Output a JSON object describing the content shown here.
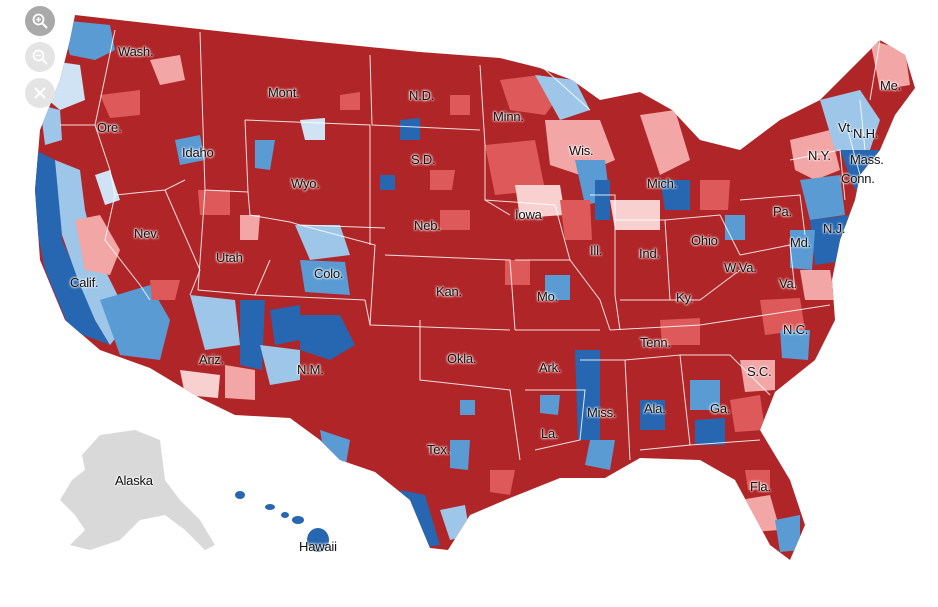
{
  "colors": {
    "strong_rep": "#b02527",
    "lean_rep": "#de5a5a",
    "light_rep": "#f2a6a6",
    "pale_rep": "#f8d0d0",
    "pale_dem": "#cfe3f4",
    "light_dem": "#9dc6e8",
    "lean_dem": "#5a9bd3",
    "strong_dem": "#2766b0",
    "no_data": "#d9d9d9",
    "zoom_active": "#a9a9a9",
    "zoom_inactive": "#e4e4e4"
  },
  "controls": {
    "zoom_in_icon": "magnifier-plus-icon",
    "zoom_out_icon": "magnifier-minus-icon",
    "reset_icon": "close-icon"
  },
  "labels": {
    "wash": "Wash.",
    "ore": "Ore.",
    "calif": "Calif.",
    "nev": "Nev.",
    "idaho": "Idaho",
    "mont": "Mont.",
    "wyo": "Wyo.",
    "utah": "Utah",
    "ariz": "Ariz.",
    "colo": "Colo.",
    "nm": "N.M.",
    "nd": "N.D.",
    "sd": "S.D.",
    "neb": "Neb.",
    "kan": "Kan.",
    "okla": "Okla.",
    "tex": "Tex.",
    "minn": "Minn.",
    "iowa": "Iowa",
    "mo": "Mo.",
    "ark": "Ark.",
    "la": "La.",
    "wis": "Wis.",
    "ill": "Ill.",
    "mich": "Mich.",
    "ind": "Ind.",
    "ohio": "Ohio",
    "ky": "Ky.",
    "tenn": "Tenn.",
    "miss": "Miss.",
    "ala": "Ala.",
    "ga": "Ga.",
    "fla": "Fla.",
    "sc": "S.C.",
    "nc": "N.C.",
    "va": "Va.",
    "wva": "W.Va.",
    "pa": "Pa.",
    "ny": "N.Y.",
    "md": "Md.",
    "nj": "N.J.",
    "conn": "Conn.",
    "mass": "Mass.",
    "vt": "Vt.",
    "nh": "N.H.",
    "me": "Me.",
    "alaska": "Alaska",
    "hawaii": "Hawaii"
  }
}
